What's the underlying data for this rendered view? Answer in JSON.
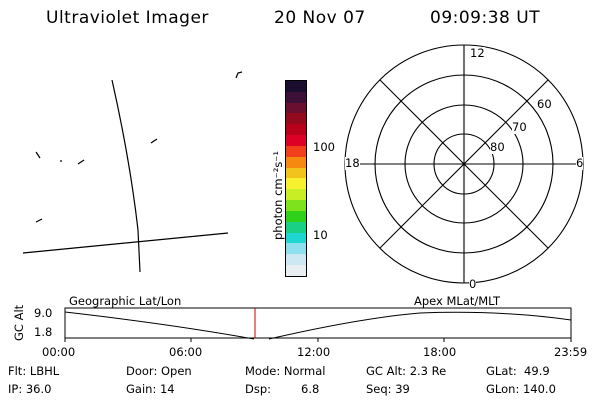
{
  "header": {
    "title": "Ultraviolet Imager",
    "date": "20 Nov 07",
    "time": "09:09:38 UT"
  },
  "colorbar": {
    "unit_label": "photon cm⁻²s⁻¹",
    "ticks": [
      "100",
      "10"
    ],
    "colors": [
      "#1a0d2e",
      "#3d1038",
      "#6a0f2f",
      "#930a1e",
      "#b8001a",
      "#de0024",
      "#f03f1a",
      "#f68a10",
      "#f3c31d",
      "#f7f12f",
      "#c8ee26",
      "#7ee21c",
      "#2fd11a",
      "#1ad084",
      "#1fd6d2",
      "#8ee0ee",
      "#cde8f2",
      "#e8eef2"
    ]
  },
  "polar_plot": {
    "clock_labels": {
      "top": "12",
      "left": "18",
      "right": "6",
      "bottom": "0"
    },
    "lat_labels": [
      "60",
      "70",
      "80"
    ]
  },
  "timeline": {
    "axis_label": "GC Alt",
    "y_ticks": [
      "9.0",
      "1.8"
    ],
    "left_title": "Geographic Lat/Lon",
    "right_title": "Apex MLat/MLT",
    "x_ticks": [
      "00:00",
      "06:00",
      "12:00",
      "18:00",
      "23:59"
    ],
    "current_marker_color": "#cc0000"
  },
  "info": {
    "flt": "Flt: LBHL",
    "ip": "IP: 36.0",
    "door": "Door: Open",
    "gain": "Gain: 14",
    "mode": "Mode: Normal",
    "dsp_label": "Dsp:",
    "dsp_value": "6.8",
    "gc_alt": "GC Alt: 2.3 Re",
    "seq": "Seq: 39",
    "glat": "GLat:  49.9",
    "glon": "GLon: 140.0"
  }
}
